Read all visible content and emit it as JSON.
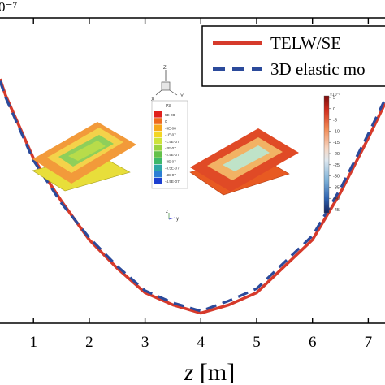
{
  "chart_data": {
    "type": "line",
    "y_exponent_label": "0⁻⁷",
    "xlabel_var": "z",
    "xlabel_unit": "[m]",
    "x_ticks": [
      1,
      2,
      3,
      4,
      5,
      6,
      7
    ],
    "xlim": [
      0.4,
      7.3
    ],
    "ylim": [
      -6.6,
      0.9
    ],
    "grid": false,
    "legend_position": "top-right",
    "series": [
      {
        "name": "TELW/SE",
        "color": "#d63a2b",
        "style": "solid",
        "x": [
          0.4,
          0.5,
          1.0,
          1.5,
          2.0,
          2.5,
          3.0,
          3.5,
          4.0,
          4.5,
          5.0,
          5.5,
          6.0,
          6.5,
          7.0,
          7.3
        ],
        "y": [
          -0.6,
          -1.0,
          -2.55,
          -3.6,
          -4.55,
          -5.25,
          -5.85,
          -6.15,
          -6.35,
          -6.15,
          -5.85,
          -5.2,
          -4.55,
          -3.4,
          -2.05,
          -1.2
        ]
      },
      {
        "name": "3D elastic mo",
        "color": "#2b4a9b",
        "style": "dashed",
        "x": [
          0.4,
          0.5,
          1.0,
          1.5,
          2.0,
          2.5,
          3.0,
          3.5,
          4.0,
          4.5,
          5.0,
          5.5,
          6.0,
          6.5,
          7.0,
          7.3
        ],
        "y": [
          -0.65,
          -1.05,
          -2.6,
          -3.65,
          -4.5,
          -5.2,
          -5.8,
          -6.1,
          -6.3,
          -6.05,
          -5.75,
          -5.1,
          -4.45,
          -3.3,
          -1.95,
          -1.1
        ]
      }
    ]
  },
  "inset": {
    "axis_z": "Z",
    "axis_x": "X",
    "axis_y": "Y",
    "triad_z": "z",
    "triad_y": "y",
    "abaqus_title": "P3",
    "abaqus_labels": [
      "5E-08",
      "0",
      "-5E-08",
      "-1E-07",
      "-1.5E-07",
      "-2E-07",
      "-2.5E-07",
      "-3E-07",
      "-3.5E-07",
      "-4E-07",
      "-4.5E-07"
    ],
    "abaqus_colors": [
      "#e0201c",
      "#ef6a1d",
      "#f6a81c",
      "#f3d624",
      "#cde33a",
      "#9bd33f",
      "#64c14a",
      "#3db86a",
      "#2da6a6",
      "#2c7fd4",
      "#1c3fd0"
    ],
    "colorbar_exp": "×10⁻⁸",
    "colorbar_ticks": [
      "5",
      "0",
      "-5",
      "-10",
      "-15",
      "-20",
      "-25",
      "-30",
      "-35",
      "-40",
      "-45"
    ]
  }
}
